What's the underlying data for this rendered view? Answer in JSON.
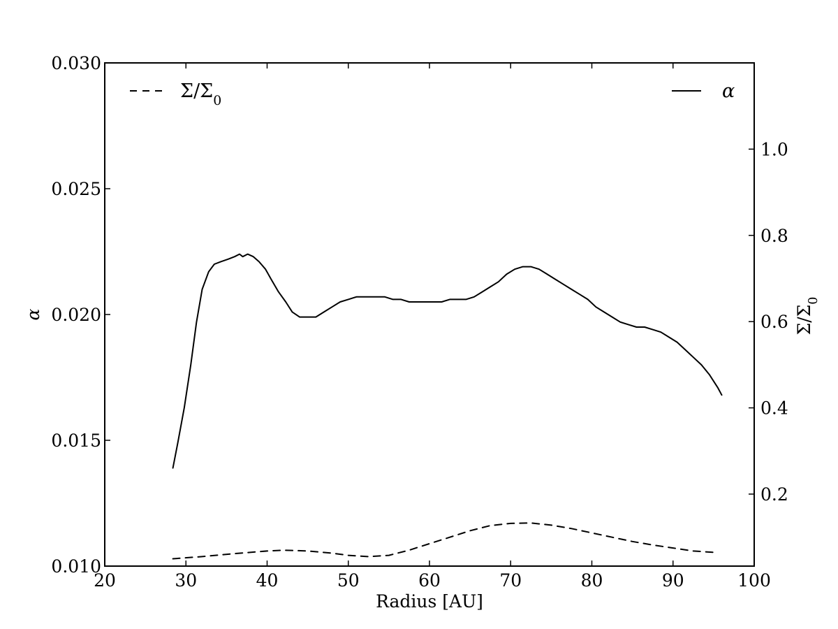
{
  "chart_data": {
    "type": "line",
    "xlabel": "Radius [AU]",
    "ylabel_left": "α",
    "ylabel_right": "Σ/Σ0",
    "xlim": [
      20,
      100
    ],
    "ylim_left": [
      0.01,
      0.03
    ],
    "ylim_right": [
      0.033,
      1.2
    ],
    "x_ticks": [
      20,
      30,
      40,
      50,
      60,
      70,
      80,
      90,
      100
    ],
    "x_tick_labels": [
      "20",
      "30",
      "40",
      "50",
      "60",
      "70",
      "80",
      "90",
      "100"
    ],
    "y_left_ticks": [
      0.01,
      0.015,
      0.02,
      0.025,
      0.03
    ],
    "y_left_tick_labels": [
      "0.010",
      "0.015",
      "0.020",
      "0.025",
      "0.030"
    ],
    "y_right_ticks": [
      0.2,
      0.4,
      0.6,
      0.8,
      1.0
    ],
    "y_right_tick_labels": [
      "0.2",
      "0.4",
      "0.6",
      "0.8",
      "1.0"
    ],
    "grid": false,
    "legend": [
      {
        "label": "Σ/Σ0",
        "style": "dashed",
        "placement": "top-left"
      },
      {
        "label": "α",
        "style": "solid",
        "placement": "top-right"
      }
    ],
    "series": [
      {
        "name": "α",
        "axis": "left",
        "style": "solid",
        "color": "#000000",
        "x": [
          28.4,
          29.0,
          29.8,
          30.6,
          31.3,
          32.0,
          32.8,
          33.5,
          34.3,
          35.2,
          36.0,
          36.6,
          37.0,
          37.6,
          38.3,
          39.0,
          39.8,
          40.5,
          41.4,
          42.3,
          43.1,
          44.0,
          44.8,
          45.2,
          46.0,
          47.0,
          48.0,
          49.0,
          50.0,
          51.0,
          52.0,
          53.0,
          54.0,
          54.5,
          55.5,
          56.5,
          57.5,
          58.5,
          59.5,
          60.5,
          61.5,
          62.5,
          63.5,
          64.5,
          65.5,
          66.5,
          67.5,
          68.5,
          69.5,
          70.5,
          71.5,
          72.5,
          73.5,
          74.5,
          75.5,
          76.5,
          77.5,
          78.5,
          79.5,
          80.5,
          81.5,
          82.5,
          83.5,
          84.5,
          85.5,
          86.5,
          87.5,
          88.5,
          89.5,
          90.5,
          91.5,
          92.5,
          93.5,
          94.5,
          95.5,
          96.0
        ],
        "y": [
          0.0139,
          0.0149,
          0.0163,
          0.018,
          0.0197,
          0.021,
          0.0217,
          0.022,
          0.0221,
          0.0222,
          0.0223,
          0.0224,
          0.0223,
          0.0224,
          0.0223,
          0.0221,
          0.0218,
          0.0214,
          0.0209,
          0.0205,
          0.0201,
          0.0199,
          0.0199,
          0.0199,
          0.0199,
          0.0201,
          0.0203,
          0.0205,
          0.0206,
          0.0207,
          0.0207,
          0.0207,
          0.0207,
          0.0207,
          0.0206,
          0.0206,
          0.0205,
          0.0205,
          0.0205,
          0.0205,
          0.0205,
          0.0206,
          0.0206,
          0.0206,
          0.0207,
          0.0209,
          0.0211,
          0.0213,
          0.0216,
          0.0218,
          0.0219,
          0.0219,
          0.0218,
          0.0216,
          0.0214,
          0.0212,
          0.021,
          0.0208,
          0.0206,
          0.0203,
          0.0201,
          0.0199,
          0.0197,
          0.0196,
          0.0195,
          0.0195,
          0.0194,
          0.0193,
          0.0191,
          0.0189,
          0.0186,
          0.0183,
          0.018,
          0.0176,
          0.0171,
          0.0168
        ]
      },
      {
        "name": "Σ/Σ0",
        "axis": "right",
        "style": "dashed",
        "color": "#000000",
        "x": [
          28.4,
          32.0,
          36.0,
          40.0,
          42.0,
          45.0,
          48.0,
          50.0,
          52.5,
          55.0,
          57.5,
          60.0,
          62.5,
          65.0,
          67.5,
          70.0,
          72.5,
          75.0,
          77.5,
          80.0,
          82.5,
          85.0,
          87.5,
          90.0,
          92.5,
          95.0
        ],
        "y": [
          0.05,
          0.055,
          0.062,
          0.068,
          0.07,
          0.068,
          0.063,
          0.058,
          0.055,
          0.058,
          0.07,
          0.085,
          0.1,
          0.115,
          0.127,
          0.132,
          0.133,
          0.128,
          0.12,
          0.11,
          0.1,
          0.09,
          0.082,
          0.075,
          0.068,
          0.065
        ]
      }
    ]
  }
}
